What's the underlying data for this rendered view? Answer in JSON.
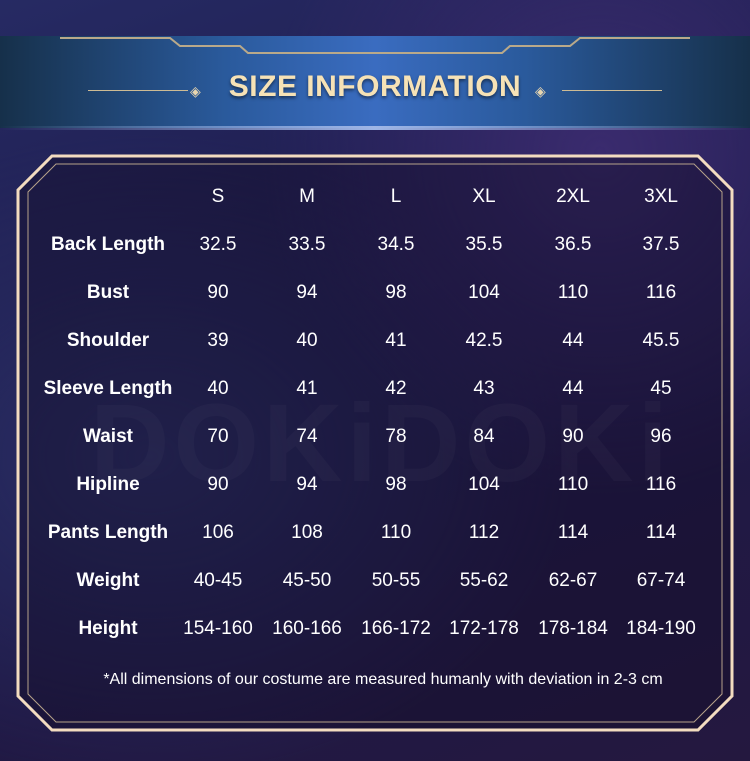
{
  "header": {
    "title": "SIZE INFORMATION"
  },
  "watermark": "DOKiDOKi",
  "table": {
    "columns": [
      "S",
      "M",
      "L",
      "XL",
      "2XL",
      "3XL"
    ],
    "rows": [
      {
        "label": "Back Length",
        "values": [
          "32.5",
          "33.5",
          "34.5",
          "35.5",
          "36.5",
          "37.5"
        ]
      },
      {
        "label": "Bust",
        "values": [
          "90",
          "94",
          "98",
          "104",
          "110",
          "116"
        ]
      },
      {
        "label": "Shoulder",
        "values": [
          "39",
          "40",
          "41",
          "42.5",
          "44",
          "45.5"
        ]
      },
      {
        "label": "Sleeve Length",
        "values": [
          "40",
          "41",
          "42",
          "43",
          "44",
          "45"
        ]
      },
      {
        "label": "Waist",
        "values": [
          "70",
          "74",
          "78",
          "84",
          "90",
          "96"
        ]
      },
      {
        "label": "Hipline",
        "values": [
          "90",
          "94",
          "98",
          "104",
          "110",
          "116"
        ]
      },
      {
        "label": "Pants Length",
        "values": [
          "106",
          "108",
          "110",
          "112",
          "114",
          "114"
        ]
      },
      {
        "label": "Weight",
        "values": [
          "40-45",
          "45-50",
          "50-55",
          "55-62",
          "62-67",
          "67-74"
        ]
      },
      {
        "label": "Height",
        "values": [
          "154-160",
          "160-166",
          "166-172",
          "172-178",
          "178-184",
          "184-190"
        ]
      }
    ]
  },
  "footnote": "*All dimensions of our costume are measured humanly with deviation in 2-3 cm",
  "colors": {
    "gold": "#f6e2b6",
    "frame": "#f3dcc0",
    "banner": "#3a6cc0"
  }
}
